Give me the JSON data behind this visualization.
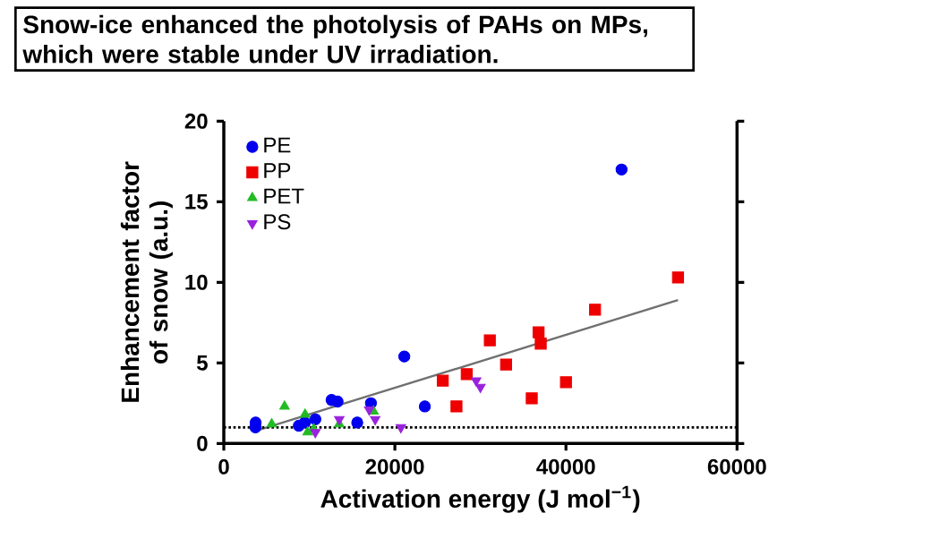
{
  "chart_data": {
    "type": "scatter",
    "title": "Snow-ice enhanced the photolysis of PAHs on MPs, which were stable under UV irradiation.",
    "xlabel": "Activation energy (J mol$^{−1}$)",
    "ylabel": "Enhancement factor of snow (a.u.)",
    "xlim": [
      0,
      60000
    ],
    "xticks": [
      0,
      20000,
      40000,
      60000
    ],
    "ylim": [
      0,
      20
    ],
    "yticks": [
      0,
      5,
      10,
      15,
      20
    ],
    "legend": "top left",
    "ref_lines": [
      {
        "axis": "y",
        "value": 1,
        "line_style": "dotted",
        "color": "#000000"
      }
    ],
    "series": [
      {
        "name": "PE",
        "color": "#0000ee",
        "marker": "circle",
        "x": [
          3720,
          3700,
          8770,
          9470,
          10700,
          12600,
          13300,
          15600,
          17200,
          21100,
          23500,
          46500
        ],
        "values": [
          1.3,
          1.0,
          1.1,
          1.3,
          1.5,
          2.7,
          2.6,
          1.3,
          2.5,
          5.4,
          2.3,
          17.0
        ]
      },
      {
        "name": "PP",
        "color": "#ee0000",
        "marker": "square",
        "x": [
          25600,
          27200,
          28400,
          31100,
          33000,
          36000,
          36800,
          37050,
          40000,
          43400,
          53100
        ],
        "values": [
          3.9,
          2.3,
          4.3,
          6.4,
          4.9,
          2.8,
          6.9,
          6.2,
          3.8,
          8.3,
          10.3
        ]
      },
      {
        "name": "PET",
        "color": "#22bb22",
        "marker": "triangle",
        "x": [
          5600,
          7100,
          9500,
          9800,
          10500,
          13500,
          17500
        ],
        "values": [
          1.2,
          2.3,
          1.8,
          0.7,
          0.9,
          1.2,
          2.0
        ]
      },
      {
        "name": "PS",
        "color": "#9922dd",
        "marker": "triangle-down",
        "x": [
          10700,
          13500,
          17000,
          17700,
          20700,
          29500,
          30000
        ],
        "values": [
          0.7,
          1.5,
          2.1,
          1.5,
          1.0,
          3.9,
          3.5
        ]
      },
      {
        "type": "line",
        "color": "#707070",
        "marker": "none",
        "x": [
          3860,
          53100
        ],
        "values": [
          0.8,
          8.9
        ]
      }
    ]
  }
}
